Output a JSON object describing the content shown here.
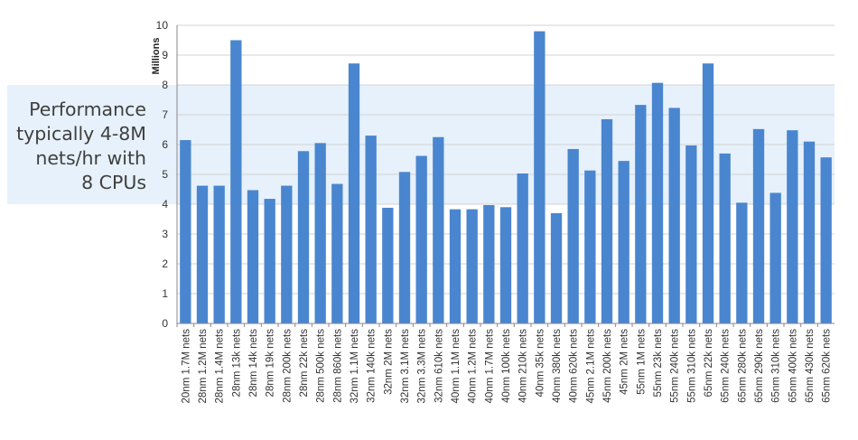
{
  "chart_data": {
    "type": "bar",
    "ylabel": "Millions",
    "ylim": [
      0,
      10
    ],
    "yticks": [
      0,
      1,
      2,
      3,
      4,
      5,
      6,
      7,
      8,
      9,
      10
    ],
    "grid": true,
    "bar_color": "#4a86cf",
    "highlight_band": [
      4,
      8
    ],
    "highlight_color": "#e6f1fb",
    "annotation": [
      "Performance",
      "typically 4-8M",
      "nets/hr with",
      "8 CPUs"
    ],
    "categories": [
      "20nm 1.7M nets",
      "28nm 1.2M nets",
      "28nm 1.4M nets",
      "28nm 13k nets",
      "28nm 14k nets",
      "28nm 19k nets",
      "28nm 200k nets",
      "28nm 22k nets",
      "28nm 500k nets",
      "28nm 860k nets",
      "32nm 1.1M nets",
      "32nm 140k nets",
      "32nm 2M nets",
      "32nm 3.1M nets",
      "32nm 3.3M nets",
      "32nm 610k nets",
      "40nm 1.1M nets",
      "40nm 1.2M nets",
      "40nm 1.7M nets",
      "40nm 100k nets",
      "40nm 210k nets",
      "40nm 35k nets",
      "40nm 380k nets",
      "40nm 620k nets",
      "45nm 2.1M nets",
      "45nm 200k nets",
      "45nm 2M nets",
      "55nm 1M nets",
      "55nm 23k nets",
      "55nm 240k nets",
      "55nm 310k nets",
      "65nm 22k nets",
      "65nm 240k nets",
      "65nm 280k nets",
      "65nm 290k nets",
      "65nm 310k nets",
      "65nm 400k nets",
      "65nm 430k nets",
      "65nm 620k nets"
    ],
    "values": [
      6.15,
      4.62,
      4.62,
      9.5,
      4.47,
      4.18,
      4.62,
      5.78,
      6.05,
      4.68,
      8.72,
      6.3,
      3.88,
      5.08,
      5.62,
      6.25,
      3.83,
      3.83,
      3.97,
      3.9,
      5.03,
      9.8,
      3.7,
      5.85,
      5.13,
      6.85,
      5.45,
      7.33,
      8.07,
      7.23,
      5.97,
      8.72,
      5.7,
      4.05,
      6.52,
      4.38,
      6.48,
      6.1,
      5.57
    ]
  }
}
